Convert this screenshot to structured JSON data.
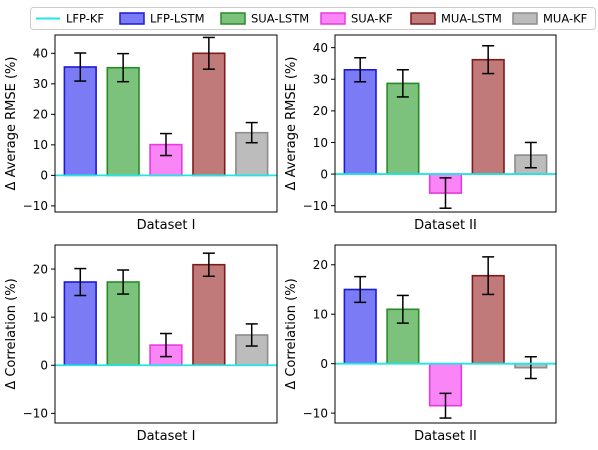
{
  "legend": {
    "items": [
      {
        "label": "LFP-KF",
        "kind": "line",
        "color": "#22e5e5"
      },
      {
        "label": "LFP-LSTM",
        "kind": "box",
        "fill": "#7b7cf5",
        "edge": "#1a1ad6"
      },
      {
        "label": "SUA-LSTM",
        "kind": "box",
        "fill": "#7cc27c",
        "edge": "#2a8a2a"
      },
      {
        "label": "SUA-KF",
        "kind": "box",
        "fill": "#f985f7",
        "edge": "#e83ae0"
      },
      {
        "label": "MUA-LSTM",
        "kind": "box",
        "fill": "#c07a7a",
        "edge": "#7f1a1a"
      },
      {
        "label": "MUA-KF",
        "kind": "box",
        "fill": "#bcbcbc",
        "edge": "#8c8c8c"
      }
    ]
  },
  "chart_data": [
    {
      "type": "bar",
      "xlabel": "Dataset I",
      "ylabel": "Δ Average RMSE (%)",
      "ylim": [
        -12,
        46
      ],
      "yticks": [
        -10,
        0,
        10,
        20,
        30,
        40
      ],
      "baseline_series": "LFP-KF",
      "categories": [
        "LFP-LSTM",
        "SUA-LSTM",
        "SUA-KF",
        "MUA-LSTM",
        "MUA-KF"
      ],
      "values": [
        35.5,
        35.3,
        10.1,
        40.0,
        14.0
      ],
      "errors": [
        4.6,
        4.6,
        3.6,
        5.2,
        3.3
      ]
    },
    {
      "type": "bar",
      "xlabel": "Dataset II",
      "ylabel": "Δ Average RMSE (%)",
      "ylim": [
        -12,
        44
      ],
      "yticks": [
        -10,
        0,
        10,
        20,
        30,
        40
      ],
      "baseline_series": "LFP-KF",
      "categories": [
        "LFP-LSTM",
        "SUA-LSTM",
        "SUA-KF",
        "MUA-LSTM",
        "MUA-KF"
      ],
      "values": [
        33.0,
        28.7,
        -6.0,
        36.2,
        6.0
      ],
      "errors": [
        3.8,
        4.3,
        4.8,
        4.4,
        4.0
      ]
    },
    {
      "type": "bar",
      "xlabel": "Dataset I",
      "ylabel": "Δ Correlation (%)",
      "ylim": [
        -12,
        25
      ],
      "yticks": [
        -10,
        0,
        10,
        20
      ],
      "baseline_series": "LFP-KF",
      "categories": [
        "LFP-LSTM",
        "SUA-LSTM",
        "SUA-KF",
        "MUA-LSTM",
        "MUA-KF"
      ],
      "values": [
        17.3,
        17.3,
        4.2,
        20.9,
        6.3
      ],
      "errors": [
        2.8,
        2.5,
        2.4,
        2.4,
        2.3
      ]
    },
    {
      "type": "bar",
      "xlabel": "Dataset II",
      "ylabel": "Δ Correlation (%)",
      "ylim": [
        -12,
        24
      ],
      "yticks": [
        -10,
        0,
        10,
        20
      ],
      "baseline_series": "LFP-KF",
      "categories": [
        "LFP-LSTM",
        "SUA-LSTM",
        "SUA-KF",
        "MUA-LSTM",
        "MUA-KF"
      ],
      "values": [
        15.0,
        11.0,
        -8.5,
        17.8,
        -0.8
      ],
      "errors": [
        2.6,
        2.8,
        2.5,
        3.8,
        2.2
      ]
    }
  ]
}
